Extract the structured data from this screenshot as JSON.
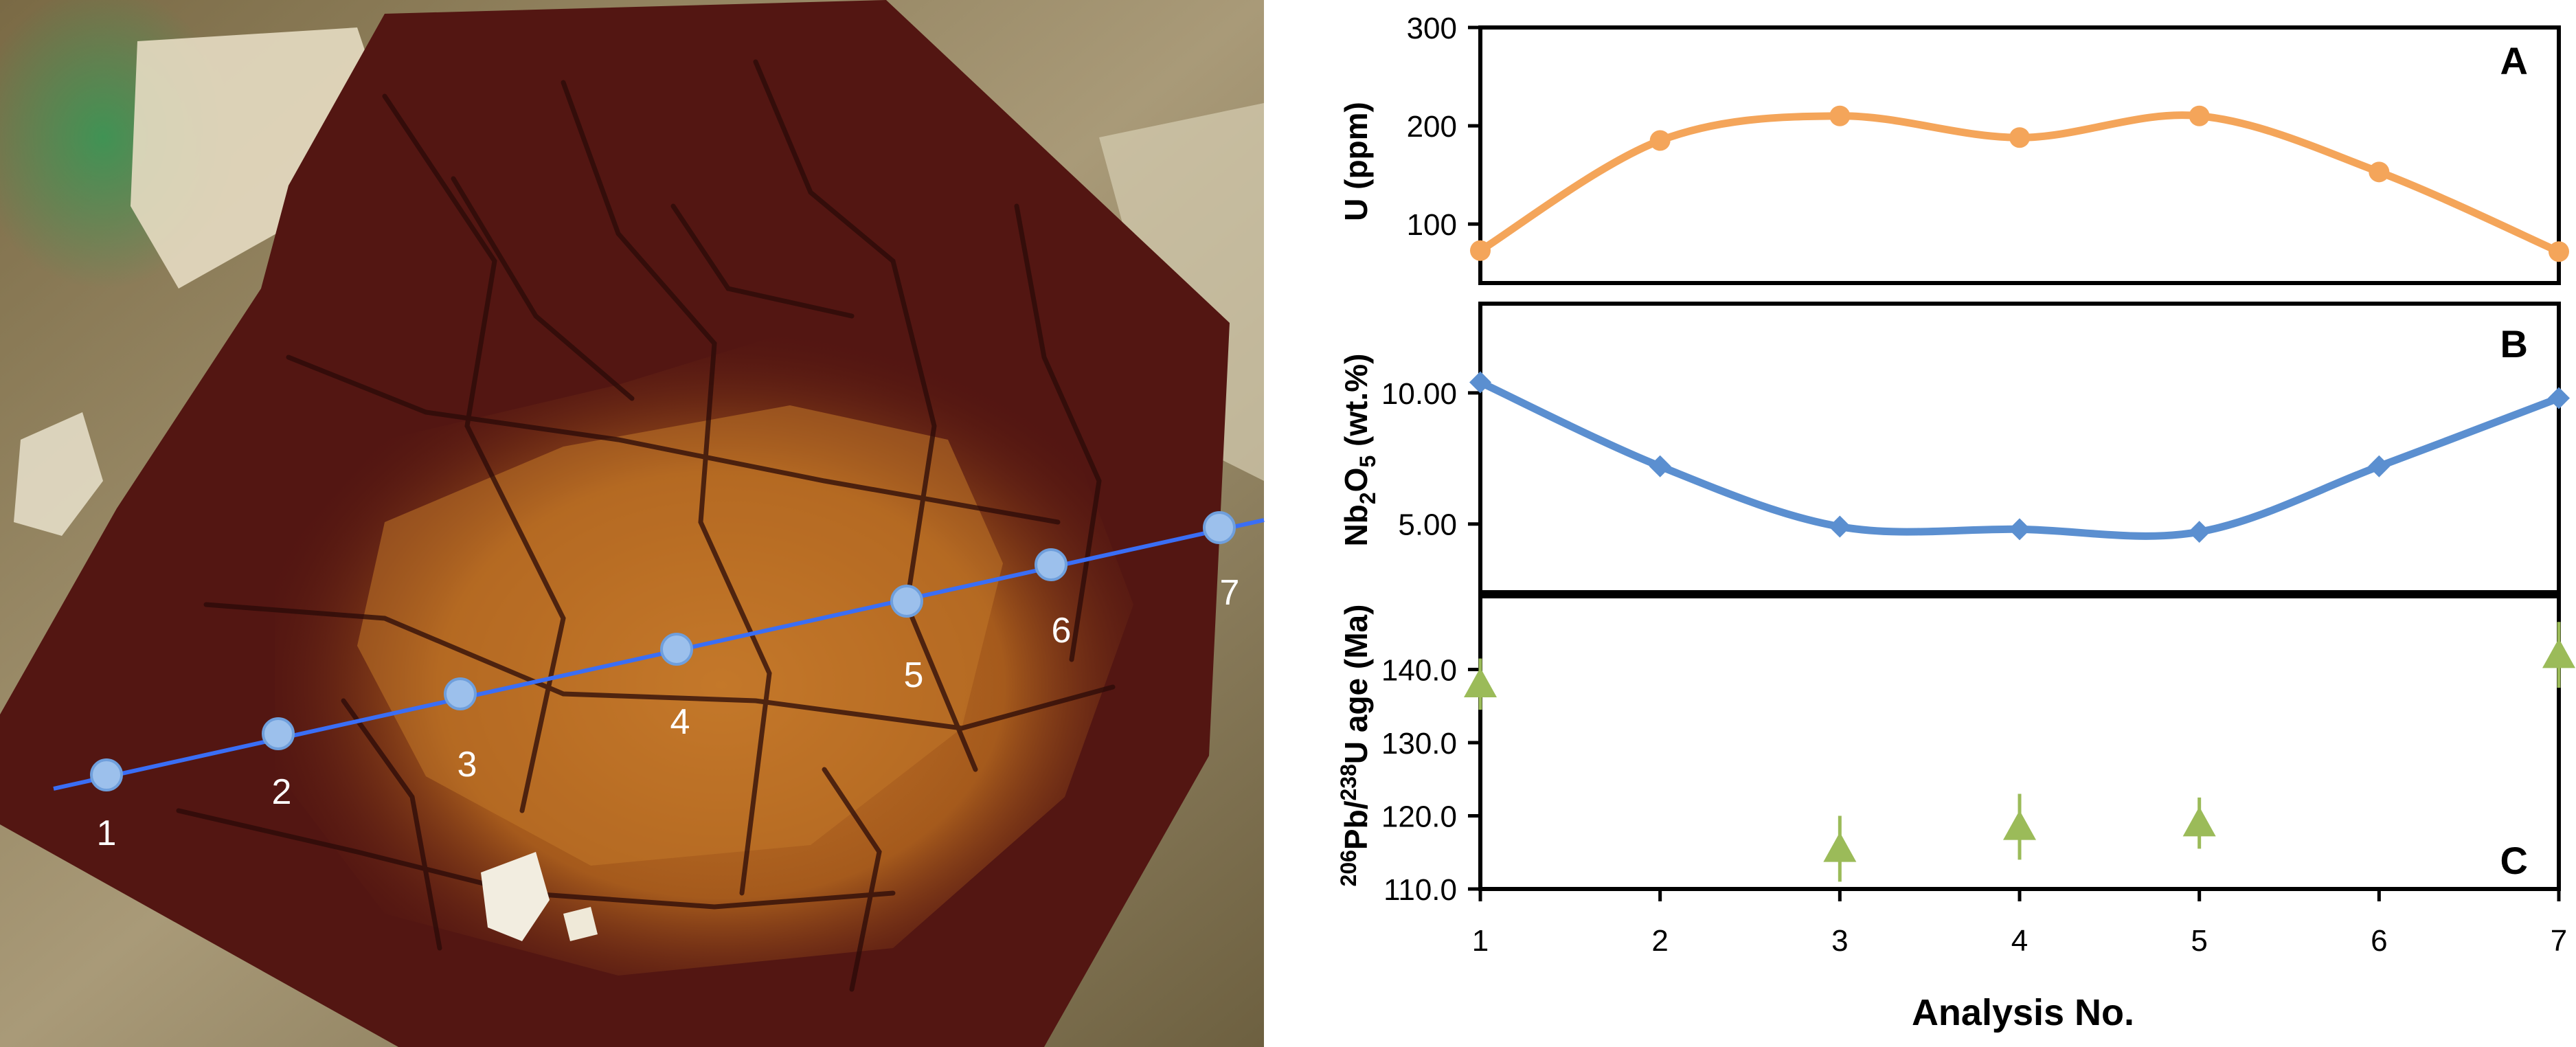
{
  "photo": {
    "traverse_labels": [
      "1",
      "2",
      "3",
      "4",
      "5",
      "6",
      "7"
    ],
    "colors": {
      "host_rock": "#b7aa8c",
      "crystal_dark": "#4a1410",
      "crystal_core": "#b86a22",
      "traverse_line": "#3a6ef5",
      "spot_fill": "#9cc0ec",
      "label_text": "#ffffff"
    }
  },
  "chart_data": [
    {
      "type": "line",
      "panel": "A",
      "x": [
        1,
        2,
        3,
        4,
        5,
        6,
        7
      ],
      "series": [
        {
          "values": [
            73,
            185,
            210,
            188,
            210,
            153,
            72
          ],
          "color": "#f4a55a",
          "marker": "circle",
          "smooth": true
        }
      ],
      "ylabel": "U (ppm)",
      "ylim": [
        40,
        300
      ],
      "yticks": [
        100,
        200,
        300
      ],
      "ytick_labels": [
        "100",
        "200",
        "300"
      ],
      "grid": false
    },
    {
      "type": "line",
      "panel": "B",
      "x": [
        1,
        2,
        3,
        4,
        5,
        6,
        7
      ],
      "series": [
        {
          "values": [
            10.4,
            7.2,
            4.9,
            4.8,
            4.7,
            7.2,
            9.8
          ],
          "color": "#5b8fd0",
          "marker": "diamond",
          "smooth": true
        }
      ],
      "ylabel": "Nb2O5 (wt.%)",
      "ylim": [
        2.4,
        13.4
      ],
      "yticks": [
        5,
        10
      ],
      "ytick_labels": [
        "5.00",
        "10.00"
      ],
      "grid": false
    },
    {
      "type": "scatter",
      "panel": "C",
      "points": [
        {
          "x": 1,
          "y": 138.0,
          "err": 3.5
        },
        {
          "x": 3,
          "y": 115.5,
          "err": 4.5
        },
        {
          "x": 4,
          "y": 118.5,
          "err": 4.5
        },
        {
          "x": 5,
          "y": 119.0,
          "err": 3.5
        },
        {
          "x": 7,
          "y": 142.0,
          "err": 4.5
        }
      ],
      "series_color": "#9bbb59",
      "marker": "triangle",
      "ylabel": "206Pb/238U age (Ma)",
      "ylim": [
        110,
        150
      ],
      "yticks": [
        110,
        120,
        130,
        140
      ],
      "ytick_labels": [
        "110.0",
        "120.0",
        "130.0",
        "140.0"
      ],
      "grid": false
    }
  ],
  "axes": {
    "xticks": [
      1,
      2,
      3,
      4,
      5,
      6,
      7
    ],
    "xtick_labels": [
      "1",
      "2",
      "3",
      "4",
      "5",
      "6",
      "7"
    ],
    "xlim": [
      1,
      7
    ],
    "xlabel": "Analysis No."
  },
  "labels": {
    "panel_a": "A",
    "panel_b": "B",
    "panel_c": "C",
    "ylabel_a": "U (ppm)",
    "ylabel_b": {
      "part1": "Nb",
      "sub1": "2",
      "part2": "O",
      "sub2": "5",
      "part3": " (wt.%)"
    },
    "ylabel_c": {
      "sup1": "206",
      "part1": "Pb/",
      "sup2": "238",
      "part2": "U age (Ma)"
    }
  }
}
